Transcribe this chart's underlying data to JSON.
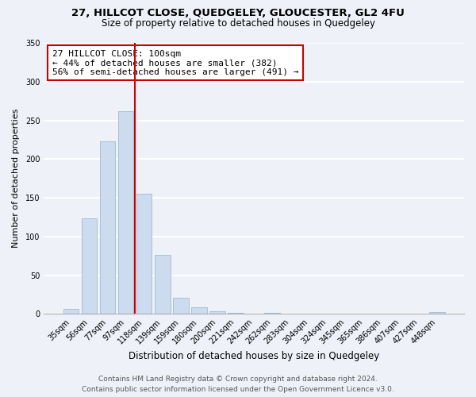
{
  "title1": "27, HILLCOT CLOSE, QUEDGELEY, GLOUCESTER, GL2 4FU",
  "title2": "Size of property relative to detached houses in Quedgeley",
  "xlabel": "Distribution of detached houses by size in Quedgeley",
  "ylabel": "Number of detached properties",
  "bar_labels": [
    "35sqm",
    "56sqm",
    "77sqm",
    "97sqm",
    "118sqm",
    "139sqm",
    "159sqm",
    "180sqm",
    "200sqm",
    "221sqm",
    "242sqm",
    "262sqm",
    "283sqm",
    "304sqm",
    "324sqm",
    "345sqm",
    "365sqm",
    "386sqm",
    "407sqm",
    "427sqm",
    "448sqm"
  ],
  "bar_values": [
    6,
    123,
    223,
    262,
    155,
    76,
    21,
    9,
    3,
    1,
    0,
    1,
    0,
    0,
    0,
    0,
    0,
    0,
    0,
    0,
    2
  ],
  "bar_color": "#ccdcee",
  "bar_edge_color": "#a8c0d8",
  "vline_x": 3.5,
  "vline_color": "#cc0000",
  "annotation_text": "27 HILLCOT CLOSE: 100sqm\n← 44% of detached houses are smaller (382)\n56% of semi-detached houses are larger (491) →",
  "annotation_box_color": "white",
  "annotation_box_edge": "#cc0000",
  "ylim": [
    0,
    350
  ],
  "yticks": [
    0,
    50,
    100,
    150,
    200,
    250,
    300,
    350
  ],
  "footer_line1": "Contains HM Land Registry data © Crown copyright and database right 2024.",
  "footer_line2": "Contains public sector information licensed under the Open Government Licence v3.0.",
  "bg_color": "#eef2f8",
  "plot_bg_color": "#eef2f8",
  "grid_color": "white",
  "title1_fontsize": 9.5,
  "title2_fontsize": 8.5,
  "xlabel_fontsize": 8.5,
  "ylabel_fontsize": 8,
  "tick_fontsize": 7,
  "footer_fontsize": 6.5
}
